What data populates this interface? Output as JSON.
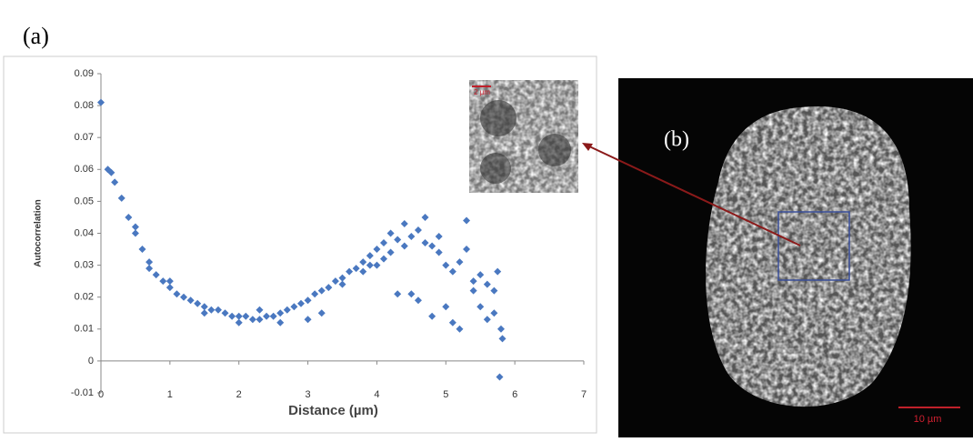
{
  "panel_labels": {
    "a": "(a)",
    "b": "(b)"
  },
  "image": {
    "scale_bar": "10 µm",
    "inset_scale_bar": "2 µm"
  },
  "chart_data": {
    "type": "scatter",
    "x_label": "Distance (µm)",
    "y_label": "Autocorrelation",
    "color": "#4a78c0",
    "x": [
      0,
      0.1,
      0.15,
      0.2,
      0.3,
      0.4,
      0.5,
      0.6,
      0.7,
      0.8,
      0.9,
      1.0,
      1.1,
      1.2,
      1.3,
      1.4,
      1.5,
      1.6,
      1.7,
      1.8,
      1.9,
      2.0,
      2.1,
      2.2,
      2.3,
      2.4,
      2.5,
      2.6,
      2.7,
      2.8,
      2.9,
      3.0,
      3.1,
      3.2,
      3.3,
      3.4,
      3.5,
      3.6,
      3.7,
      3.8,
      3.9,
      4.0,
      4.1,
      4.2,
      4.3,
      4.4,
      4.5,
      4.6,
      4.7,
      4.8,
      4.9,
      5.0,
      5.1,
      5.2,
      5.3,
      5.4,
      5.5,
      5.6,
      5.7,
      5.75,
      5.8,
      5.82,
      5.78,
      0.5,
      0.7,
      1.0,
      1.5,
      2.0,
      2.3,
      2.6,
      3.0,
      3.2,
      3.5,
      3.8,
      4.0,
      4.2,
      4.3,
      4.5,
      4.6,
      4.4,
      4.7,
      4.9,
      4.8,
      5.0,
      5.1,
      5.2,
      5.3,
      5.4,
      5.5,
      5.6,
      5.7,
      4.1,
      3.9
    ],
    "values": [
      0.081,
      0.06,
      0.059,
      0.056,
      0.051,
      0.045,
      0.04,
      0.035,
      0.031,
      0.027,
      0.025,
      0.023,
      0.021,
      0.02,
      0.019,
      0.018,
      0.017,
      0.016,
      0.016,
      0.015,
      0.014,
      0.014,
      0.014,
      0.013,
      0.013,
      0.014,
      0.014,
      0.015,
      0.016,
      0.017,
      0.018,
      0.019,
      0.021,
      0.022,
      0.023,
      0.025,
      0.026,
      0.028,
      0.029,
      0.031,
      0.033,
      0.035,
      0.037,
      0.04,
      0.038,
      0.036,
      0.039,
      0.041,
      0.037,
      0.036,
      0.034,
      0.03,
      0.028,
      0.031,
      0.044,
      0.025,
      0.027,
      0.024,
      0.022,
      0.028,
      0.01,
      0.007,
      -0.005,
      0.042,
      0.029,
      0.025,
      0.015,
      0.012,
      0.016,
      0.012,
      0.013,
      0.015,
      0.024,
      0.028,
      0.03,
      0.034,
      0.021,
      0.021,
      0.019,
      0.043,
      0.045,
      0.039,
      0.014,
      0.017,
      0.012,
      0.01,
      0.035,
      0.022,
      0.017,
      0.013,
      0.015,
      0.032,
      0.03
    ],
    "xlim": [
      0,
      7
    ],
    "xticks": [
      0,
      1,
      2,
      3,
      4,
      5,
      6,
      7
    ],
    "ylim": [
      -0.01,
      0.09
    ],
    "yticks": [
      -0.01,
      0,
      0.01,
      0.02,
      0.03,
      0.04,
      0.05,
      0.06,
      0.07,
      0.08,
      0.09
    ]
  }
}
